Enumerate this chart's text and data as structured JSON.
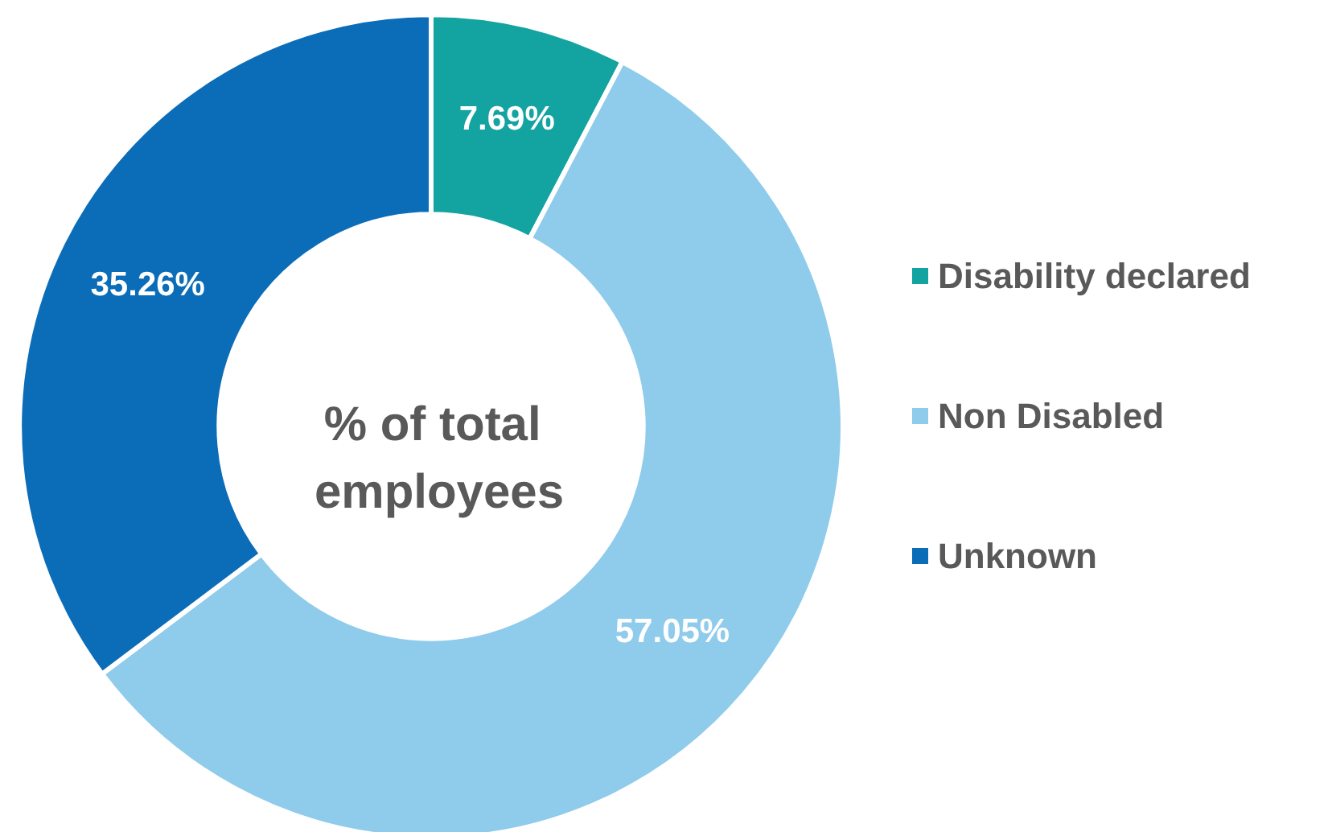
{
  "chart_data": {
    "type": "donut",
    "title": "% of total employees",
    "categories": [
      "Disability declared",
      "Non Disabled",
      "Unknown"
    ],
    "values": [
      7.69,
      57.05,
      35.26
    ],
    "colors": [
      "#13a3a0",
      "#8fcbeb",
      "#0b6cb8"
    ],
    "value_labels": [
      "7.69%",
      "57.05%",
      "35.26%"
    ],
    "legend": "right"
  }
}
